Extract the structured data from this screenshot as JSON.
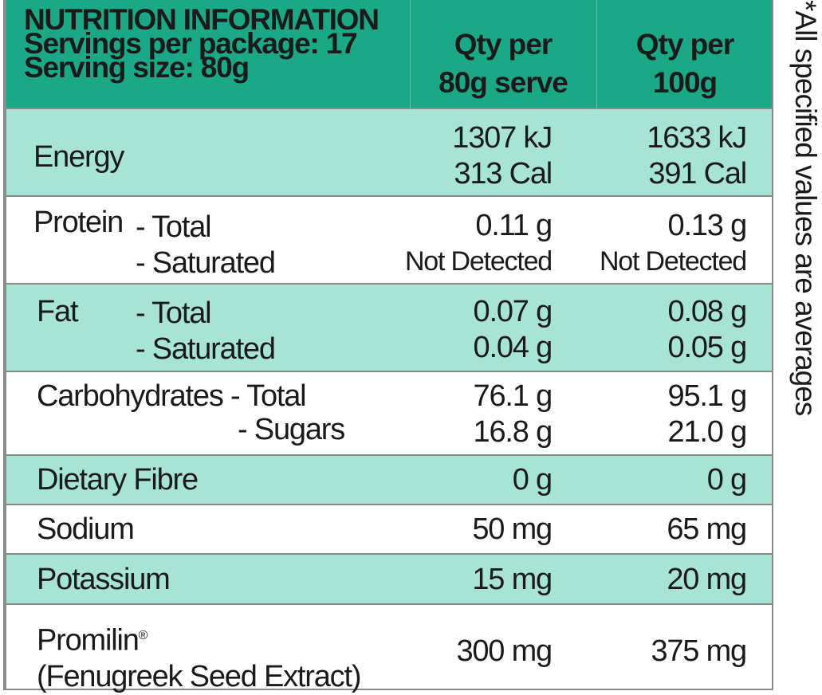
{
  "header": {
    "title": "NUTRITION INFORMATION",
    "servings": "Servings per package: 17",
    "serving_size": "Serving size: 80g",
    "col1": [
      "Qty per",
      "80g serve"
    ],
    "col2": [
      "Qty per",
      "100g"
    ]
  },
  "rows": {
    "energy": {
      "label": "Energy",
      "v1": [
        "1307 kJ",
        "313 Cal"
      ],
      "v2": [
        "1633 kJ",
        "391 Cal"
      ]
    },
    "protein": {
      "label": "Protein",
      "sub": [
        "- Total",
        "- Saturated"
      ],
      "v1": [
        "0.11 g",
        "Not Detected"
      ],
      "v2": [
        "0.13 g",
        "Not Detected"
      ]
    },
    "fat": {
      "label": "Fat",
      "sub": [
        "- Total",
        "- Saturated"
      ],
      "v1": [
        "0.07 g",
        "0.04 g"
      ],
      "v2": [
        "0.08 g",
        "0.05 g"
      ]
    },
    "carbs": {
      "label": "Carbohydrates",
      "sub": [
        "- Total",
        "- Sugars"
      ],
      "v1": [
        "76.1 g",
        "16.8 g"
      ],
      "v2": [
        "95.1 g",
        "21.0 g"
      ]
    },
    "fibre": {
      "label": "Dietary Fibre",
      "v1": "0 g",
      "v2": "0 g"
    },
    "sodium": {
      "label": "Sodium",
      "v1": "50 mg",
      "v2": "65 mg"
    },
    "potassium": {
      "label": "Potassium",
      "v1": "15 mg",
      "v2": "20 mg"
    },
    "promilin": {
      "label": "Promilin",
      "mark": "®",
      "label2": "(Fenugreek Seed Extract)",
      "v1": "300 mg",
      "v2": "375 mg"
    }
  },
  "footnote": "*All specified values are averages",
  "colors": {
    "header": "#1aa886",
    "teal_row": "#a8e4d6",
    "border": "#8a8a8a"
  }
}
